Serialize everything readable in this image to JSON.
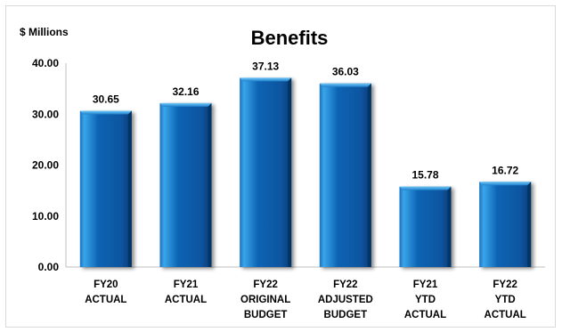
{
  "chart_data": {
    "type": "bar",
    "title": "Benefits",
    "ylabel": "$ Millions",
    "xlabel": "",
    "ylim": [
      0,
      40
    ],
    "yticks": [
      "0.00",
      "10.00",
      "20.00",
      "30.00",
      "40.00"
    ],
    "ytick_values": [
      0,
      10,
      20,
      30,
      40
    ],
    "grid": false,
    "legend": "none",
    "categories": [
      [
        "FY20",
        "ACTUAL"
      ],
      [
        "FY21",
        "ACTUAL"
      ],
      [
        "FY22",
        "ORIGINAL",
        "BUDGET"
      ],
      [
        "FY22",
        "ADJUSTED",
        "BUDGET"
      ],
      [
        "FY21",
        "YTD",
        "ACTUAL"
      ],
      [
        "FY22",
        "YTD",
        "ACTUAL"
      ]
    ],
    "values": [
      30.65,
      32.16,
      37.13,
      36.03,
      15.78,
      16.72
    ],
    "value_labels": [
      "30.65",
      "32.16",
      "37.13",
      "36.03",
      "15.78",
      "16.72"
    ],
    "colors": {
      "bar_light": "#2a8fd6",
      "bar_mid": "#0a5aa8",
      "bar_dark": "#083e7a",
      "axis": "#bfbfbf"
    }
  }
}
